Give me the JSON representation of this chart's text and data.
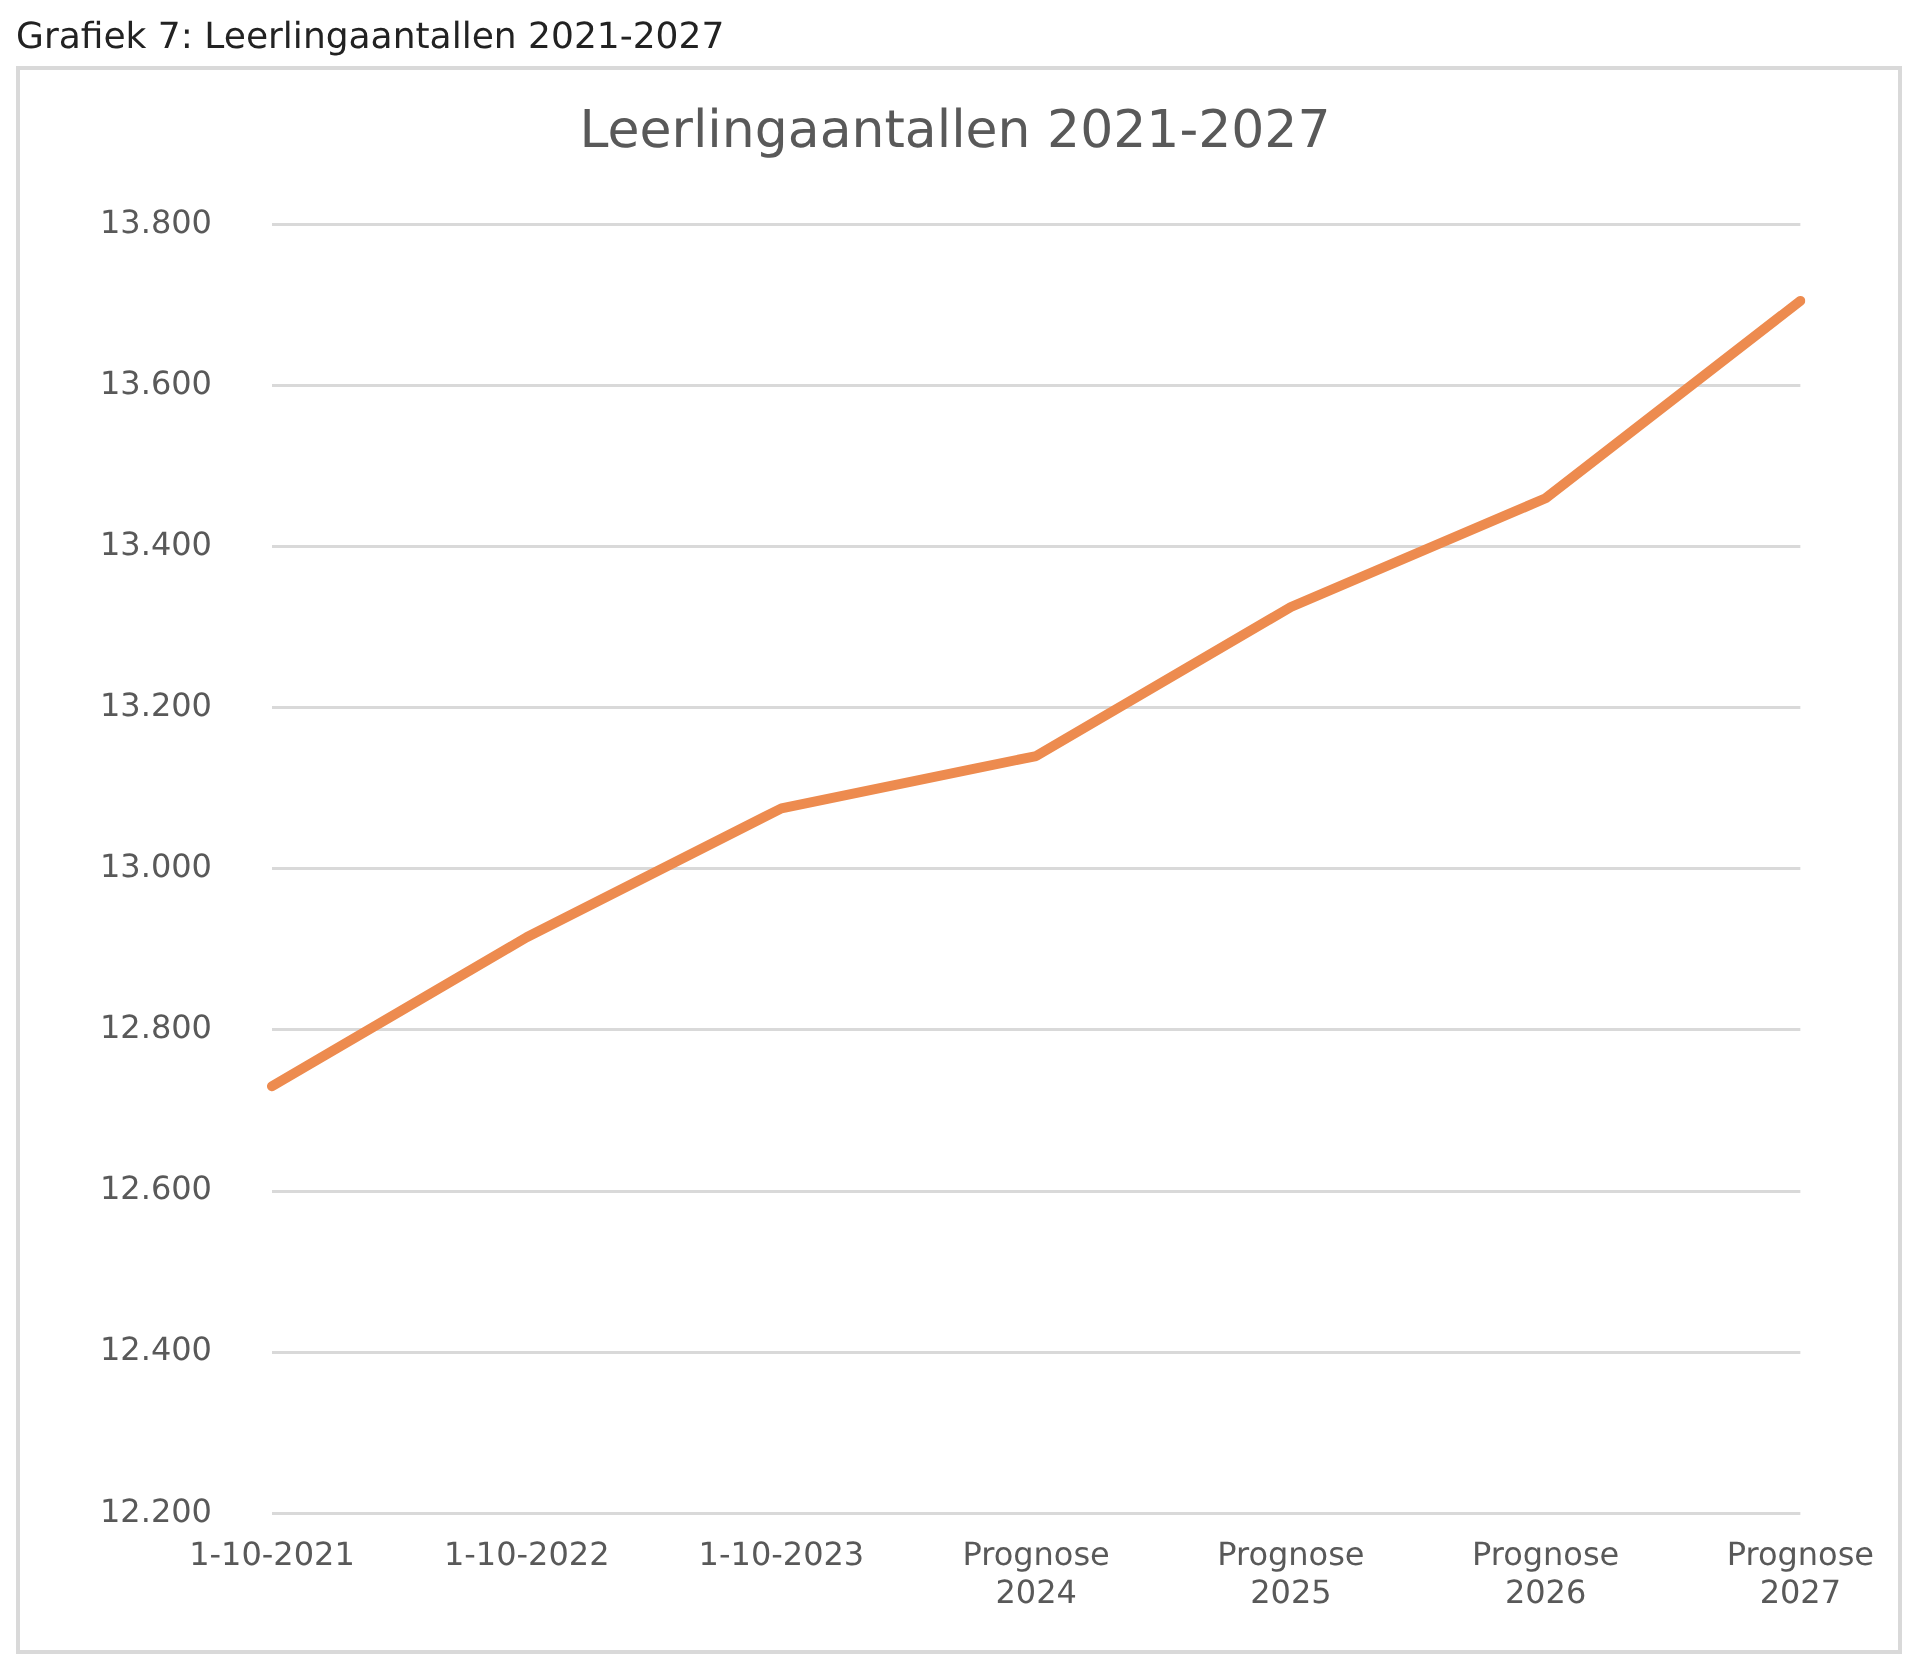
{
  "chart_data": {
    "type": "line",
    "title": "Leerlingaantallen 2021-2027",
    "annotations": [
      "Grafiek 7: Leerlingaantallen 2021-2027"
    ],
    "categories": [
      "1-10-2021",
      "1-10-2022",
      "1-10-2023",
      "Prognose 2024",
      "Prognose 2025",
      "Prognose 2026",
      "Prognose 2027"
    ],
    "series": [
      {
        "color": "#ed8b4f",
        "values": [
          12730,
          12915,
          13075,
          13140,
          13325,
          13460,
          13705
        ]
      }
    ],
    "ylim": [
      12200,
      13800
    ],
    "yticks": [
      {
        "value": 12200,
        "label": "12.200"
      },
      {
        "value": 12400,
        "label": "12.400"
      },
      {
        "value": 12600,
        "label": "12.600"
      },
      {
        "value": 12800,
        "label": "12.800"
      },
      {
        "value": 13000,
        "label": "13.000"
      },
      {
        "value": 13200,
        "label": "13.200"
      },
      {
        "value": 13400,
        "label": "13.400"
      },
      {
        "value": 13600,
        "label": "13.600"
      },
      {
        "value": 13800,
        "label": "13.800"
      }
    ],
    "grid": "y",
    "legend": false,
    "marker": "none",
    "line_style": "solid"
  }
}
